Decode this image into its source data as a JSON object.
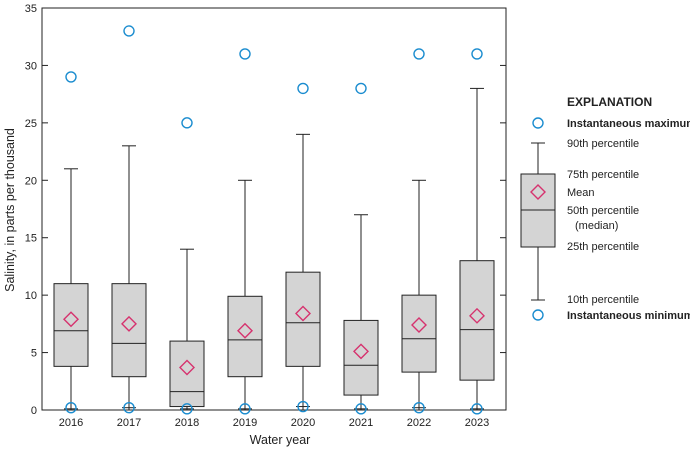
{
  "chart_data": {
    "type": "box",
    "xlabel": "Water year",
    "ylabel": "Salinity, in parts per thousand",
    "ylim": [
      0,
      35
    ],
    "yticks": [
      0,
      5,
      10,
      15,
      20,
      25,
      30,
      35
    ],
    "categories": [
      "2016",
      "2017",
      "2018",
      "2019",
      "2020",
      "2021",
      "2022",
      "2023"
    ],
    "boxes": [
      {
        "p10": 0.1,
        "q1": 3.8,
        "median": 6.9,
        "q3": 11.0,
        "p90": 21.0,
        "mean": 7.9,
        "min": 0.2,
        "max": 29.0
      },
      {
        "p10": 0.2,
        "q1": 2.9,
        "median": 5.8,
        "q3": 11.0,
        "p90": 23.0,
        "mean": 7.5,
        "min": 0.2,
        "max": 33.0
      },
      {
        "p10": 0.1,
        "q1": 0.3,
        "median": 1.6,
        "q3": 6.0,
        "p90": 14.0,
        "mean": 3.7,
        "min": 0.1,
        "max": 25.0
      },
      {
        "p10": 0.1,
        "q1": 2.9,
        "median": 6.1,
        "q3": 9.9,
        "p90": 20.0,
        "mean": 6.9,
        "min": 0.1,
        "max": 31.0
      },
      {
        "p10": 0.3,
        "q1": 3.8,
        "median": 7.6,
        "q3": 12.0,
        "p90": 24.0,
        "mean": 8.4,
        "min": 0.3,
        "max": 28.0
      },
      {
        "p10": 0.1,
        "q1": 1.3,
        "median": 3.9,
        "q3": 7.8,
        "p90": 17.0,
        "mean": 5.1,
        "min": 0.1,
        "max": 28.0
      },
      {
        "p10": 0.2,
        "q1": 3.3,
        "median": 6.2,
        "q3": 10.0,
        "p90": 20.0,
        "mean": 7.4,
        "min": 0.2,
        "max": 31.0
      },
      {
        "p10": 0.1,
        "q1": 2.6,
        "median": 7.0,
        "q3": 13.0,
        "p90": 28.0,
        "mean": 8.2,
        "min": 0.1,
        "max": 31.0
      }
    ],
    "colors": {
      "box_fill": "#d4d4d4",
      "mean_marker": "#d6326e",
      "outlier_marker": "#1a8ccf",
      "line": "#222222"
    }
  },
  "legend": {
    "title": "EXPLANATION",
    "max_label": "Instantaneous maximum",
    "p90_label": "90th percentile",
    "p75_label": "75th percentile",
    "mean_label": "Mean",
    "median_label": "50th percentile",
    "median_label2": "(median)",
    "p25_label": "25th percentile",
    "p10_label": "10th percentile",
    "min_label": "Instantaneous minimum"
  }
}
